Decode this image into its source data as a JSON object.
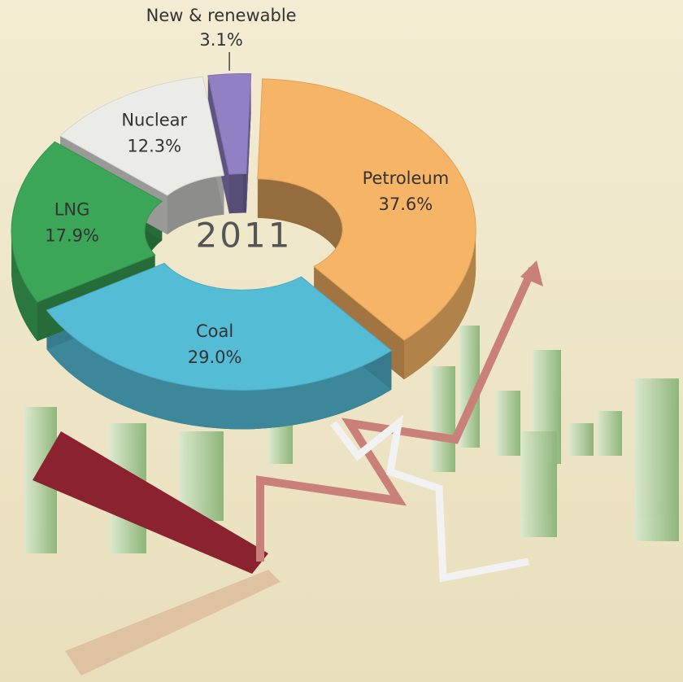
{
  "chart_data": {
    "type": "pie",
    "donut": true,
    "center_label": "2011",
    "categories": [
      "Petroleum",
      "Coal",
      "LNG",
      "Nuclear",
      "New & renewable"
    ],
    "values": [
      37.6,
      29.0,
      17.9,
      12.3,
      3.1
    ],
    "value_labels": [
      "37.6%",
      "29.0%",
      "17.9%",
      "12.3%",
      "3.1%"
    ],
    "colors": [
      "#f6b466",
      "#55bcd6",
      "#3ba657",
      "#ebebe8",
      "#9280c4"
    ]
  }
}
